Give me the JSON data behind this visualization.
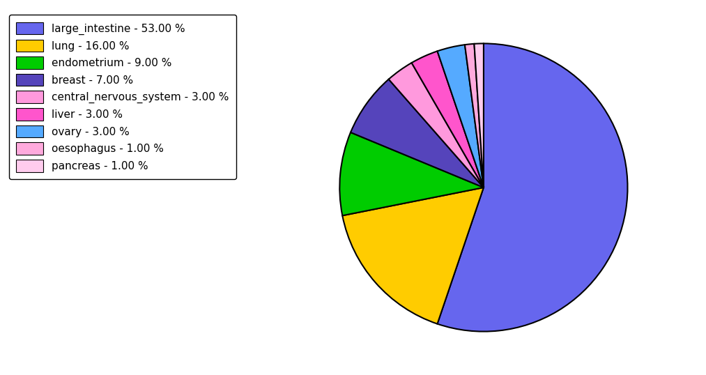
{
  "labels": [
    "large_intestine",
    "lung",
    "endometrium",
    "breast",
    "central_nervous_system",
    "liver",
    "ovary",
    "oesophagus",
    "pancreas"
  ],
  "values": [
    53.0,
    16.0,
    9.0,
    7.0,
    3.0,
    3.0,
    3.0,
    1.0,
    1.0
  ],
  "colors": [
    "#6666ee",
    "#ffcc00",
    "#00cc00",
    "#5544bb",
    "#ff99dd",
    "#ff55cc",
    "#55aaff",
    "#ffaadd",
    "#ffccee"
  ],
  "legend_labels": [
    "large_intestine - 53.00 %",
    "lung - 16.00 %",
    "endometrium - 9.00 %",
    "breast - 7.00 %",
    "central_nervous_system - 3.00 %",
    "liver - 3.00 %",
    "ovary - 3.00 %",
    "oesophagus - 1.00 %",
    "pancreas - 1.00 %"
  ],
  "background_color": "#ffffff",
  "figsize": [
    10.13,
    5.38
  ],
  "dpi": 100
}
